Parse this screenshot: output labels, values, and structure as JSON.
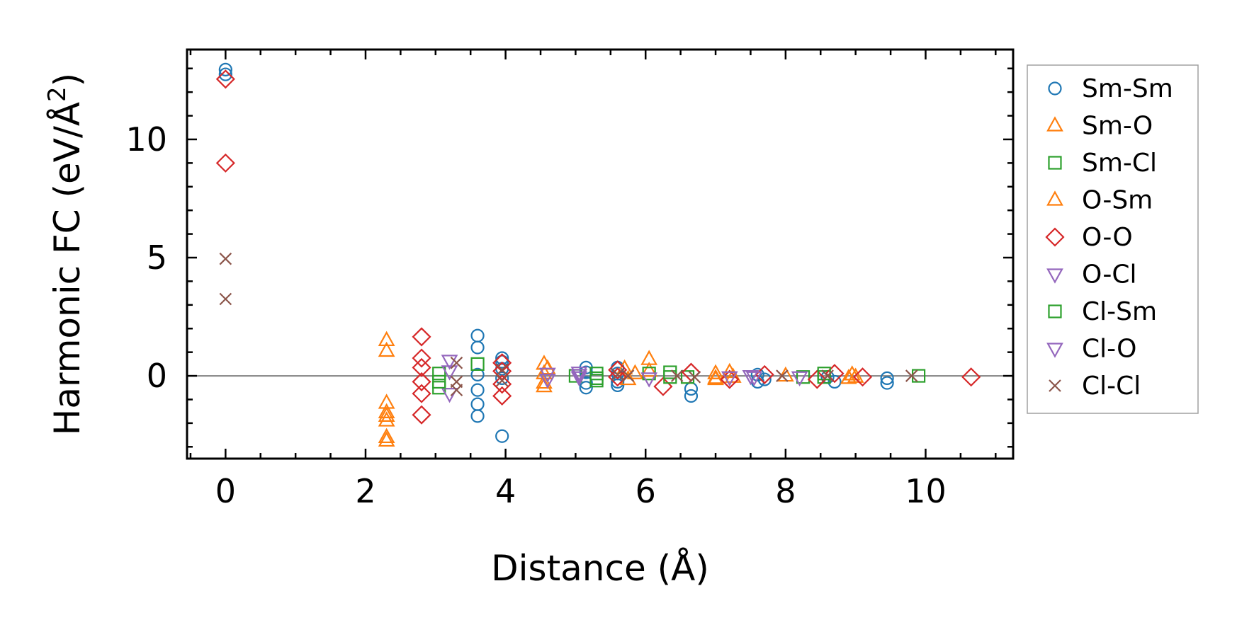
{
  "chart_data": {
    "type": "scatter",
    "title": "",
    "xlabel": "Distance (Å)",
    "ylabel": "Harmonic FC (eV/Å²)",
    "ylabel_parts": {
      "main": "Harmonic FC (eV/Å",
      "sup": "2",
      "close": ")"
    },
    "xlim": [
      -0.55,
      11.25
    ],
    "ylim": [
      -3.5,
      13.8
    ],
    "xticks": [
      0,
      2,
      4,
      6,
      8,
      10
    ],
    "xtick_labels": [
      "0",
      "2",
      "4",
      "6",
      "8",
      "10"
    ],
    "yticks": [
      0,
      5,
      10
    ],
    "ytick_labels": [
      "0",
      "5",
      "10"
    ],
    "grid": false,
    "zero_line": true,
    "legend_position": "right outside",
    "series": [
      {
        "name": "Sm-Sm",
        "marker": "circle",
        "color": "#1f77b4",
        "points": [
          [
            0,
            12.95
          ],
          [
            0,
            12.75
          ],
          [
            3.6,
            1.7
          ],
          [
            3.6,
            1.2
          ],
          [
            3.6,
            0.05
          ],
          [
            3.6,
            -0.6
          ],
          [
            3.6,
            -1.2
          ],
          [
            3.6,
            -1.7
          ],
          [
            3.95,
            0.75
          ],
          [
            3.95,
            0.6
          ],
          [
            3.95,
            0.3
          ],
          [
            3.95,
            -0.1
          ],
          [
            3.95,
            -2.55
          ],
          [
            5.15,
            0.35
          ],
          [
            5.15,
            0.15
          ],
          [
            5.15,
            -0.3
          ],
          [
            5.15,
            -0.5
          ],
          [
            5.6,
            0.35
          ],
          [
            5.6,
            0.1
          ],
          [
            5.6,
            -0.25
          ],
          [
            5.6,
            -0.4
          ],
          [
            6.65,
            -0.55
          ],
          [
            6.65,
            -0.85
          ],
          [
            7.6,
            0.05
          ],
          [
            7.6,
            -0.25
          ],
          [
            7.7,
            -0.15
          ],
          [
            8.6,
            -0.05
          ],
          [
            8.7,
            -0.25
          ],
          [
            9.45,
            -0.1
          ],
          [
            9.45,
            -0.3
          ]
        ]
      },
      {
        "name": "Sm-O",
        "marker": "triangle-up",
        "color": "#ff7f0e",
        "points": [
          [
            2.3,
            1.5
          ],
          [
            2.3,
            1.05
          ],
          [
            2.3,
            -1.15
          ],
          [
            2.3,
            -1.7
          ],
          [
            2.3,
            -2.6
          ],
          [
            4.55,
            0.5
          ],
          [
            4.55,
            0.1
          ],
          [
            4.55,
            -0.3
          ],
          [
            5.7,
            0.3
          ],
          [
            5.85,
            0.1
          ],
          [
            6.05,
            0.7
          ],
          [
            6.05,
            0.2
          ],
          [
            7.0,
            0.1
          ],
          [
            7.0,
            -0.1
          ],
          [
            7.2,
            0.15
          ],
          [
            8.0,
            0.0
          ],
          [
            8.95,
            0.05
          ],
          [
            9.0,
            -0.05
          ]
        ]
      },
      {
        "name": "Sm-Cl",
        "marker": "square",
        "color": "#2ca02c",
        "points": [
          [
            3.05,
            -0.5
          ],
          [
            3.05,
            0.1
          ],
          [
            3.6,
            0.5
          ],
          [
            5.0,
            0.0
          ],
          [
            5.3,
            -0.1
          ],
          [
            5.3,
            0.1
          ],
          [
            6.05,
            0.1
          ],
          [
            6.35,
            0.15
          ],
          [
            6.6,
            -0.05
          ],
          [
            8.25,
            -0.05
          ],
          [
            8.55,
            -0.05
          ],
          [
            9.9,
            0.0
          ]
        ]
      },
      {
        "name": "O-Sm",
        "marker": "triangle-up",
        "color": "#ff7f0e",
        "points": [
          [
            2.3,
            -1.55
          ],
          [
            2.3,
            -1.9
          ],
          [
            2.3,
            -2.75
          ],
          [
            4.55,
            -0.45
          ],
          [
            4.6,
            0.3
          ],
          [
            5.75,
            -0.15
          ],
          [
            7.0,
            -0.15
          ],
          [
            7.25,
            -0.05
          ],
          [
            8.9,
            -0.1
          ]
        ]
      },
      {
        "name": "O-O",
        "marker": "diamond",
        "color": "#d62728",
        "points": [
          [
            0,
            12.55
          ],
          [
            0,
            9.0
          ],
          [
            2.8,
            1.65
          ],
          [
            2.8,
            0.75
          ],
          [
            2.8,
            0.35
          ],
          [
            2.8,
            -0.25
          ],
          [
            2.8,
            -0.75
          ],
          [
            2.8,
            -1.65
          ],
          [
            3.95,
            0.55
          ],
          [
            3.95,
            0.2
          ],
          [
            3.95,
            -0.35
          ],
          [
            3.95,
            -0.85
          ],
          [
            5.6,
            0.25
          ],
          [
            5.6,
            -0.05
          ],
          [
            6.25,
            -0.45
          ],
          [
            6.65,
            0.15
          ],
          [
            7.2,
            -0.15
          ],
          [
            7.7,
            0.05
          ],
          [
            8.45,
            -0.15
          ],
          [
            8.7,
            0.1
          ],
          [
            9.1,
            -0.05
          ],
          [
            10.65,
            -0.05
          ]
        ]
      },
      {
        "name": "O-Cl",
        "marker": "triangle-down",
        "color": "#9467bd",
        "points": [
          [
            3.2,
            0.65
          ],
          [
            3.2,
            -0.75
          ],
          [
            4.6,
            0.1
          ],
          [
            5.05,
            0.15
          ],
          [
            5.05,
            -0.05
          ],
          [
            6.05,
            -0.1
          ],
          [
            7.2,
            -0.05
          ],
          [
            7.55,
            -0.05
          ],
          [
            8.2,
            -0.05
          ]
        ]
      },
      {
        "name": "Cl-Sm",
        "marker": "square",
        "color": "#2ca02c",
        "points": [
          [
            3.05,
            -0.25
          ],
          [
            5.3,
            -0.2
          ],
          [
            6.35,
            -0.05
          ],
          [
            8.55,
            0.1
          ]
        ]
      },
      {
        "name": "Cl-O",
        "marker": "triangle-down",
        "color": "#9467bd",
        "points": [
          [
            3.2,
            0.2
          ],
          [
            4.6,
            -0.15
          ],
          [
            5.05,
            0.05
          ],
          [
            7.5,
            0.0
          ]
        ]
      },
      {
        "name": "Cl-Cl",
        "marker": "x",
        "color": "#8c564b",
        "points": [
          [
            0,
            4.95
          ],
          [
            0,
            3.25
          ],
          [
            3.3,
            0.55
          ],
          [
            3.3,
            -0.25
          ],
          [
            3.3,
            -0.6
          ],
          [
            3.95,
            0.25
          ],
          [
            3.95,
            -0.2
          ],
          [
            5.6,
            0.05
          ],
          [
            5.75,
            0.0
          ],
          [
            6.45,
            0.0
          ],
          [
            6.7,
            -0.05
          ],
          [
            7.95,
            0.0
          ],
          [
            8.6,
            0.0
          ],
          [
            9.8,
            0.0
          ]
        ]
      }
    ]
  }
}
